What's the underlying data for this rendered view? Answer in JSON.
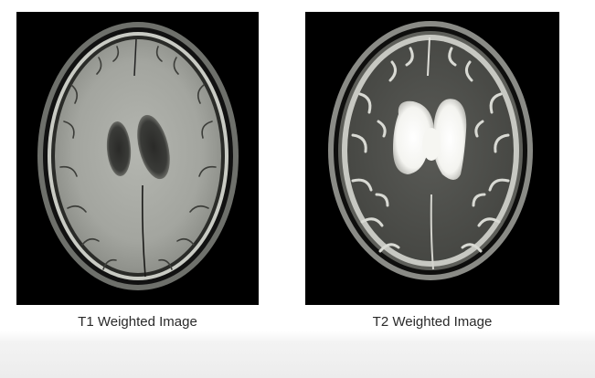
{
  "images": [
    {
      "caption": "T1 Weighted Image"
    },
    {
      "caption": "T2 Weighted Image"
    }
  ]
}
